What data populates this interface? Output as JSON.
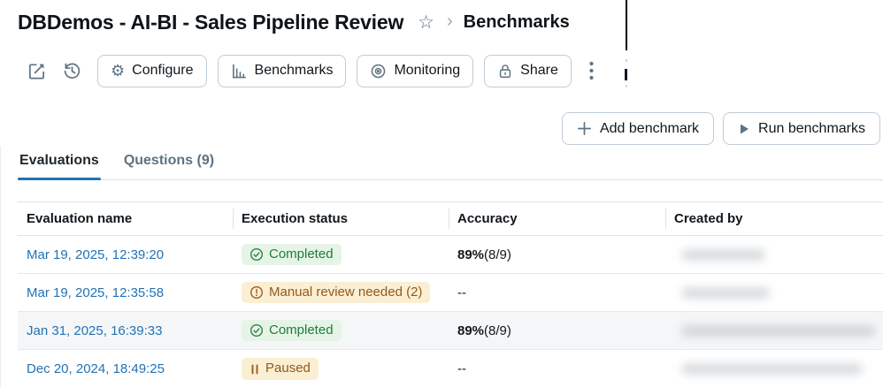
{
  "header": {
    "title": "DBDemos - AI-BI - Sales Pipeline Review",
    "breadcrumb_separator": "›",
    "star_icon": "☆",
    "breadcrumb_current": "Benchmarks"
  },
  "toolbar": {
    "buttons": [
      {
        "label": "Configure",
        "icon": "gear-icon"
      },
      {
        "label": "Benchmarks",
        "icon": "bar-chart-icon"
      },
      {
        "label": "Monitoring",
        "icon": "monitoring-target-icon"
      },
      {
        "label": "Share",
        "icon": "lock-icon"
      }
    ]
  },
  "actions": {
    "add_label": "Add benchmark",
    "run_label": "Run benchmarks"
  },
  "tabs": [
    {
      "label": "Evaluations",
      "active": true
    },
    {
      "label": "Questions (9)",
      "active": false
    }
  ],
  "table": {
    "columns": [
      "Evaluation name",
      "Execution status",
      "Accuracy",
      "Created by"
    ],
    "rows": [
      {
        "name": "Mar 19, 2025, 12:39:20",
        "status": "Completed",
        "status_type": "success",
        "status_icon": "check-circle",
        "accuracy_strong": "89%",
        "accuracy_detail": " (8/9)",
        "created_by_redacted": true,
        "redacted_width": 95,
        "shaded": false
      },
      {
        "name": "Mar 19, 2025, 12:35:58",
        "status": "Manual review needed (2)",
        "status_type": "warning",
        "status_icon": "alert-circle",
        "accuracy_text": "--",
        "created_by_redacted": true,
        "redacted_width": 100,
        "shaded": false
      },
      {
        "name": "Jan 31, 2025, 16:39:33",
        "status": "Completed",
        "status_type": "success",
        "status_icon": "check-circle",
        "accuracy_strong": "89%",
        "accuracy_detail": " (8/9)",
        "created_by_redacted": true,
        "redacted_width": 220,
        "shaded": true
      },
      {
        "name": "Dec 20, 2024, 18:49:25",
        "status": "Paused",
        "status_type": "warning",
        "status_icon": "pause",
        "accuracy_text": "--",
        "created_by_redacted": true,
        "redacted_width": 205,
        "shaded": false
      }
    ]
  },
  "colors": {
    "accent_blue": "#2272b4",
    "link_blue": "#2272b4",
    "success_bg": "#e6f4e7",
    "success_fg": "#1e7e34",
    "warning_bg": "#fbefd3",
    "warning_fg": "#91591c",
    "icon_slate": "#5f7281",
    "border_gray": "#c0ccd8"
  }
}
